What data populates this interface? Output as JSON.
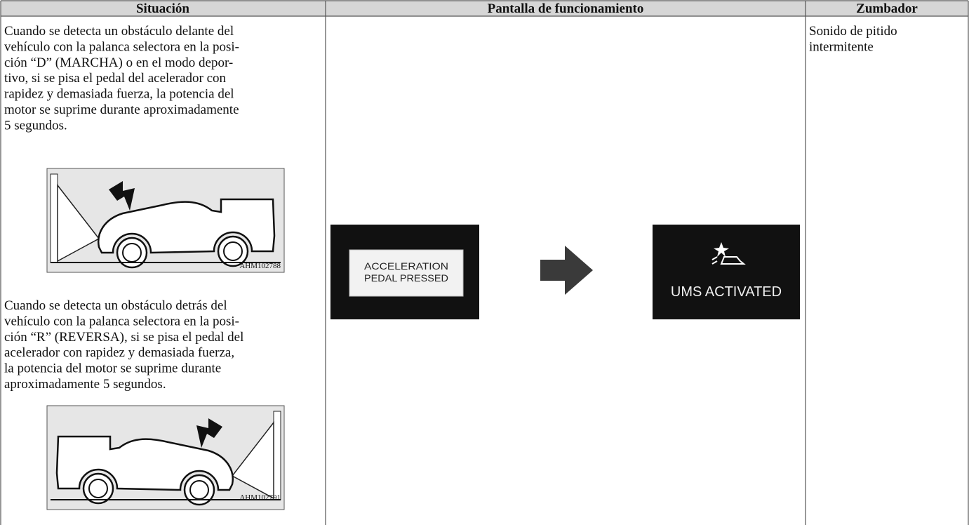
{
  "header": {
    "columns": [
      "Situación",
      "Pantalla de funcionamiento",
      "Zumbador"
    ]
  },
  "situation": {
    "paragraph_1": [
      "Cuando se detecta un obstáculo delante del",
      "vehículo con la palanca selectora en la posi-",
      "ción “D” (MARCHA) o en el modo depor-",
      "tivo, si se pisa el pedal del acelerador con",
      "rapidez y demasiada fuerza, la potencia del",
      "motor se suprime durante aproximadamente",
      "5 segundos."
    ],
    "figure_1": "AHM102788",
    "paragraph_2": [
      "Cuando se detecta un obstáculo detrás del",
      "vehículo con la palanca selectora en la posi-",
      "ción “R” (REVERSA), si se pisa el pedal del",
      "acelerador con rapidez y demasiada fuerza,",
      "la potencia del motor se suprime durante",
      "aproximadamente 5 segundos."
    ],
    "figure_2": "AHM102791"
  },
  "display": {
    "screen_1": [
      "ACCELERATION",
      "PEDAL PRESSED"
    ],
    "screen_2": "UMS ACTIVATED"
  },
  "buzzer": [
    "Sonido de pitido",
    "intermitente"
  ]
}
